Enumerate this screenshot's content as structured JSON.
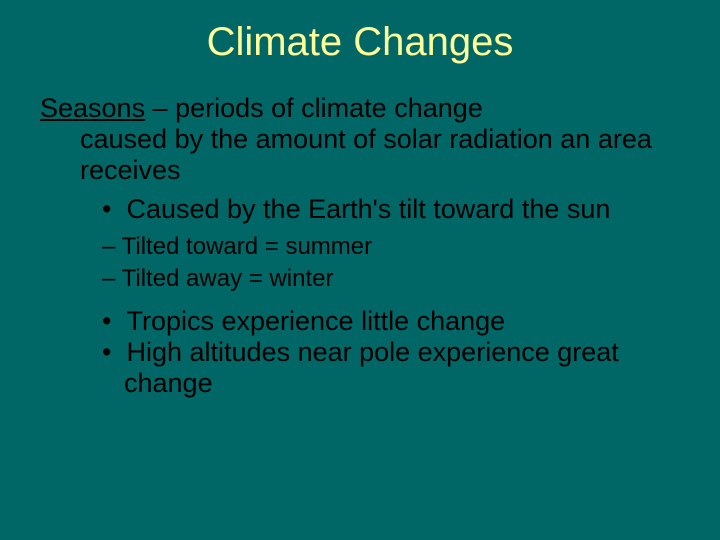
{
  "colors": {
    "background": "#006666",
    "title": "#ffff99",
    "body": "#000000"
  },
  "typography": {
    "title_fontsize": 40,
    "body_fontsize": 27,
    "sub_fontsize": 24,
    "family": "Arial"
  },
  "title": "Climate Changes",
  "term": "Seasons",
  "definition_line1": " – periods of climate change",
  "definition_line2": "caused by the amount of solar radiation an area receives",
  "bullets": {
    "b1": "Caused by the Earth's tilt toward the sun",
    "b1_sub1": "Tilted toward = summer",
    "b1_sub2": "Tilted away = winter",
    "b2": "Tropics experience little change",
    "b3": "High altitudes near pole experience great change"
  },
  "markers": {
    "bullet": "•",
    "dash": "–"
  }
}
